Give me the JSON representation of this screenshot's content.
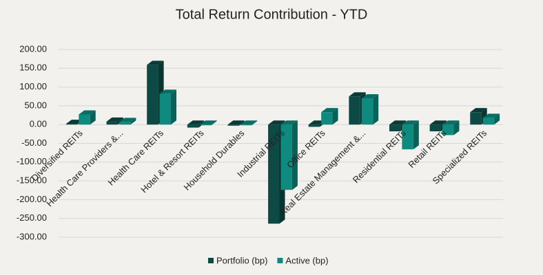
{
  "chart_data": {
    "type": "bar3d",
    "title": "Total Return Contribution - YTD",
    "categories": [
      "Diversified REITs",
      "Health Care Providers &...",
      "Health Care REITs",
      "Hotel & Resort REITs",
      "Household Durables",
      "Industrial REITs",
      "Office REITs",
      "Real Estate Management &...",
      "Residential REITs",
      "Retail REITs",
      "Specialized REITs"
    ],
    "series": [
      {
        "name": "Portfolio (bp)",
        "color": "#0d4a45",
        "values": [
          2,
          8,
          159,
          -8,
          -3,
          -264,
          -6,
          75,
          -18,
          -18,
          33
        ]
      },
      {
        "name": "Active (bp)",
        "color": "#0e8a7e",
        "values": [
          27,
          7,
          82,
          -2,
          -2,
          -174,
          33,
          70,
          -66,
          -28,
          18
        ]
      }
    ],
    "ylim": [
      -300,
      200
    ],
    "yticks": [
      {
        "value": -300,
        "label": "-300.00"
      },
      {
        "value": -250,
        "label": "-250.00"
      },
      {
        "value": -200,
        "label": "-200.00"
      },
      {
        "value": -150,
        "label": "-150.00"
      },
      {
        "value": -100,
        "label": "-100.00"
      },
      {
        "value": -50,
        "label": "-50.00"
      },
      {
        "value": 0,
        "label": "0.00"
      },
      {
        "value": 50,
        "label": "50.00"
      },
      {
        "value": 100,
        "label": "100.00"
      },
      {
        "value": 150,
        "label": "150.00"
      },
      {
        "value": 200,
        "label": "200.00"
      }
    ],
    "grid": true,
    "legend": "bottom"
  }
}
